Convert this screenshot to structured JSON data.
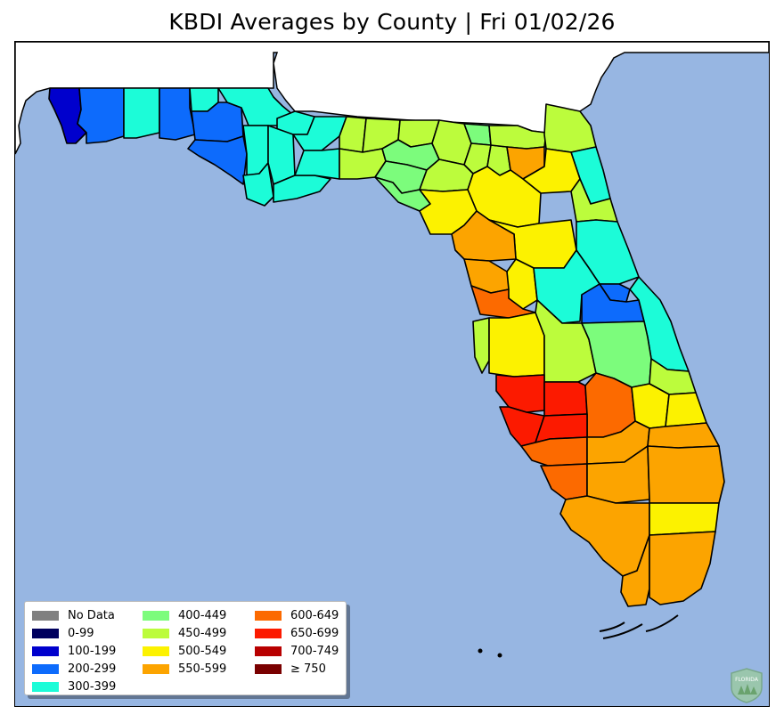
{
  "title": "KBDI Averages by County | Fri 01/02/26",
  "colors": {
    "water": "#97b6e2",
    "land_outside": "#ffffff",
    "border": "#000000",
    "no_data": "#808080",
    "0-99": "#00005e",
    "100-199": "#0000cd",
    "200-299": "#0d6bfc",
    "300-399": "#1cfcd8",
    "400-449": "#7cfc7c",
    "450-499": "#bcfc3c",
    "500-549": "#fcf200",
    "550-599": "#fca400",
    "600-649": "#fc6a00",
    "650-699": "#fc1a00",
    "700-749": "#b80000",
    "750+": "#7a0000"
  },
  "legend": {
    "items": [
      {
        "label": "No Data",
        "color": "#808080"
      },
      {
        "label": "0-99",
        "color": "#00005e"
      },
      {
        "label": "100-199",
        "color": "#0000cd"
      },
      {
        "label": "200-299",
        "color": "#0d6bfc"
      },
      {
        "label": "300-399",
        "color": "#1cfcd8"
      },
      {
        "label": "400-449",
        "color": "#7cfc7c"
      },
      {
        "label": "450-499",
        "color": "#bcfc3c"
      },
      {
        "label": "500-549",
        "color": "#fcf200"
      },
      {
        "label": "550-599",
        "color": "#fca400"
      },
      {
        "label": "600-649",
        "color": "#fc6a00"
      },
      {
        "label": "650-699",
        "color": "#fc1a00"
      },
      {
        "label": "700-749",
        "color": "#b80000"
      },
      {
        "label": "≥ 750",
        "color": "#7a0000"
      }
    ]
  },
  "logo": {
    "text": "FLORIDA",
    "color": "#6ea36e"
  }
}
